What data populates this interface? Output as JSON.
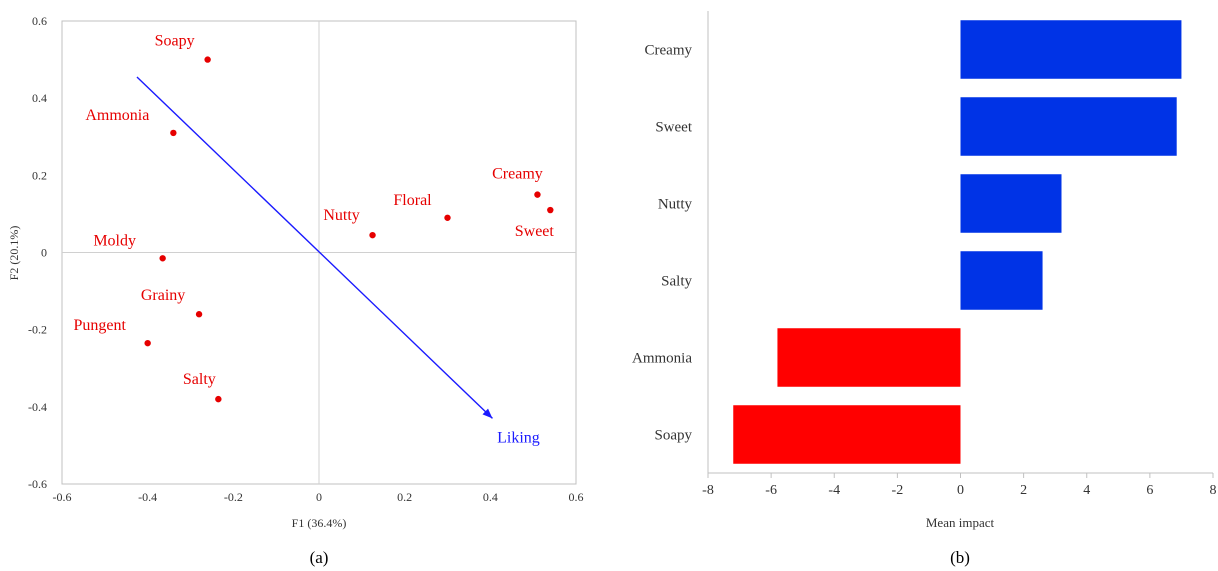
{
  "chart_data": [
    {
      "type": "scatter",
      "panel_label": "(a)",
      "xlabel": "F1 (36.4%)",
      "ylabel": "F2 (20.1%)",
      "xlim": [
        -0.6,
        0.6
      ],
      "ylim": [
        -0.6,
        0.6
      ],
      "xticks": [
        -0.6,
        -0.4,
        -0.2,
        0,
        0.2,
        0.4,
        0.6
      ],
      "yticks": [
        -0.6,
        -0.4,
        -0.2,
        0,
        0.2,
        0.4,
        0.6
      ],
      "xtick_labels": [
        "-0.6",
        "-0.4",
        "-0.2",
        "0",
        "0.2",
        "0.4",
        "0.6"
      ],
      "ytick_labels": [
        "-0.6",
        "-0.4",
        "-0.2",
        "0",
        "0.2",
        "0.4",
        "0.6"
      ],
      "grid": false,
      "zero_lines": true,
      "point_color": "#e60000",
      "points": [
        {
          "label": "Soapy",
          "x": -0.26,
          "y": 0.5
        },
        {
          "label": "Ammonia",
          "x": -0.34,
          "y": 0.31
        },
        {
          "label": "Creamy",
          "x": 0.51,
          "y": 0.15
        },
        {
          "label": "Sweet",
          "x": 0.54,
          "y": 0.11
        },
        {
          "label": "Floral",
          "x": 0.3,
          "y": 0.09
        },
        {
          "label": "Nutty",
          "x": 0.125,
          "y": 0.045
        },
        {
          "label": "Moldy",
          "x": -0.365,
          "y": -0.015
        },
        {
          "label": "Grainy",
          "x": -0.28,
          "y": -0.16
        },
        {
          "label": "Pungent",
          "x": -0.4,
          "y": -0.235
        },
        {
          "label": "Salty",
          "x": -0.235,
          "y": -0.38
        }
      ],
      "vector": {
        "label": "Liking",
        "x0": -0.425,
        "y0": 0.455,
        "x1": 0.405,
        "y1": -0.43,
        "color": "#1a1aff"
      }
    },
    {
      "type": "bar",
      "orientation": "horizontal",
      "panel_label": "(b)",
      "xlabel": "Mean impact",
      "xlim": [
        -8,
        8
      ],
      "xticks": [
        -8,
        -6,
        -4,
        -2,
        0,
        2,
        4,
        6,
        8
      ],
      "xtick_labels": [
        "-8",
        "-6",
        "-4",
        "-2",
        "0",
        "2",
        "4",
        "6",
        "8"
      ],
      "categories": [
        "Creamy",
        "Sweet",
        "Nutty",
        "Salty",
        "Ammonia",
        "Soapy"
      ],
      "values": [
        7.0,
        6.85,
        3.2,
        2.6,
        -5.8,
        -7.2
      ],
      "positive_color": "#0033e6",
      "negative_color": "#ff0000",
      "grid": false
    }
  ]
}
